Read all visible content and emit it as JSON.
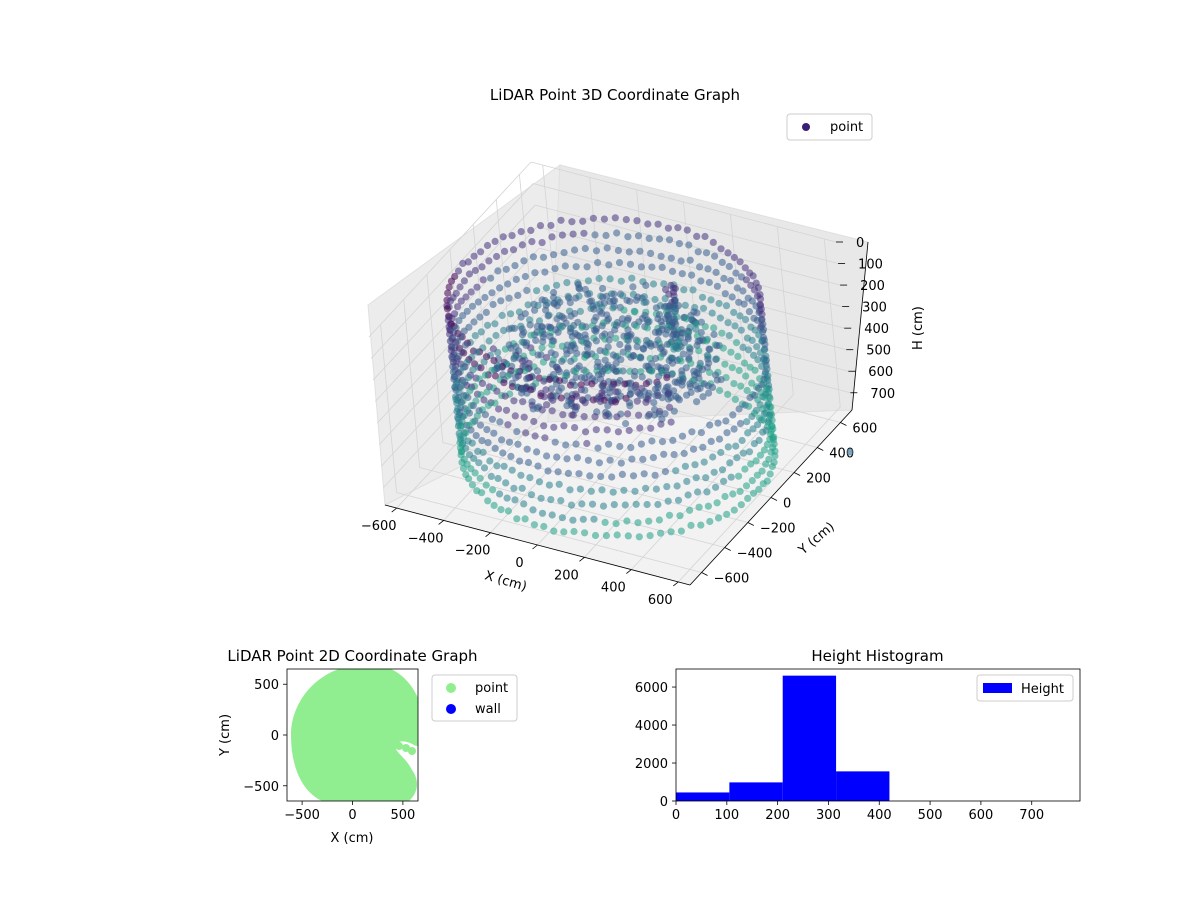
{
  "figure": {
    "titles": {
      "chart3d": "LiDAR Point 3D Coordinate Graph",
      "chart2d": "LiDAR Point 2D Coordinate Graph",
      "hist": "Height Histogram"
    }
  },
  "chart_data": [
    {
      "type": "scatter",
      "title": "LiDAR Point 3D Coordinate Graph",
      "projection": "3d",
      "xlabel": "X (cm)",
      "ylabel": "Y (cm)",
      "zlabel": "H (cm)",
      "xlim": [
        -650,
        650
      ],
      "ylim": [
        -700,
        700
      ],
      "zlim": [
        0,
        780
      ],
      "z_inverted": true,
      "xticks": [
        -600,
        -400,
        -200,
        0,
        200,
        400,
        600
      ],
      "yticks": [
        -600,
        -400,
        -200,
        0,
        200,
        400,
        600
      ],
      "zticks": [
        0,
        100,
        200,
        300,
        400,
        500,
        600,
        700
      ],
      "legend": {
        "entries": [
          "point"
        ],
        "placement": "top-right"
      },
      "series": [
        {
          "name": "point",
          "colormap": "viridis",
          "description": "ring of points forming a cylindrical wall, radius about 600 cm, heights about 50 to 750 cm",
          "wall_radius": 600,
          "height_range": [
            50,
            750
          ]
        }
      ],
      "colors": {
        "dark": "#440154",
        "mid": "#3b528b",
        "light": "#21918c"
      }
    },
    {
      "type": "scatter",
      "title": "LiDAR Point 2D Coordinate Graph",
      "xlabel": "X (cm)",
      "ylabel": "Y (cm)",
      "xlim": [
        -650,
        650
      ],
      "ylim": [
        -650,
        650
      ],
      "xticks": [
        -500,
        0,
        500
      ],
      "yticks": [
        -500,
        0,
        500
      ],
      "legend": {
        "entries": [
          "point",
          "wall"
        ],
        "placement": "outside right"
      },
      "series": [
        {
          "name": "point",
          "color": "#90ee90",
          "points_cm": [
            [
              0,
              0
            ]
          ],
          "region_radius": 620
        },
        {
          "name": "wall",
          "color": "#0000ff",
          "points_cm": []
        }
      ]
    },
    {
      "type": "bar",
      "title": "Height Histogram",
      "xlim": [
        0,
        795
      ],
      "ylim": [
        0,
        6950
      ],
      "xticks": [
        0,
        100,
        200,
        300,
        400,
        500,
        600,
        700
      ],
      "yticks": [
        0,
        2000,
        4000,
        6000
      ],
      "bins": [
        {
          "start": 0,
          "end": 105,
          "count": 450
        },
        {
          "start": 105,
          "end": 210,
          "count": 980
        },
        {
          "start": 210,
          "end": 315,
          "count": 6600
        },
        {
          "start": 315,
          "end": 420,
          "count": 1560
        },
        {
          "start": 420,
          "end": 525,
          "count": 0
        },
        {
          "start": 525,
          "end": 630,
          "count": 0
        },
        {
          "start": 630,
          "end": 735,
          "count": 0
        }
      ],
      "legend": {
        "entries": [
          "Height"
        ],
        "placement": "top-right"
      },
      "color": "#0000ff"
    }
  ]
}
